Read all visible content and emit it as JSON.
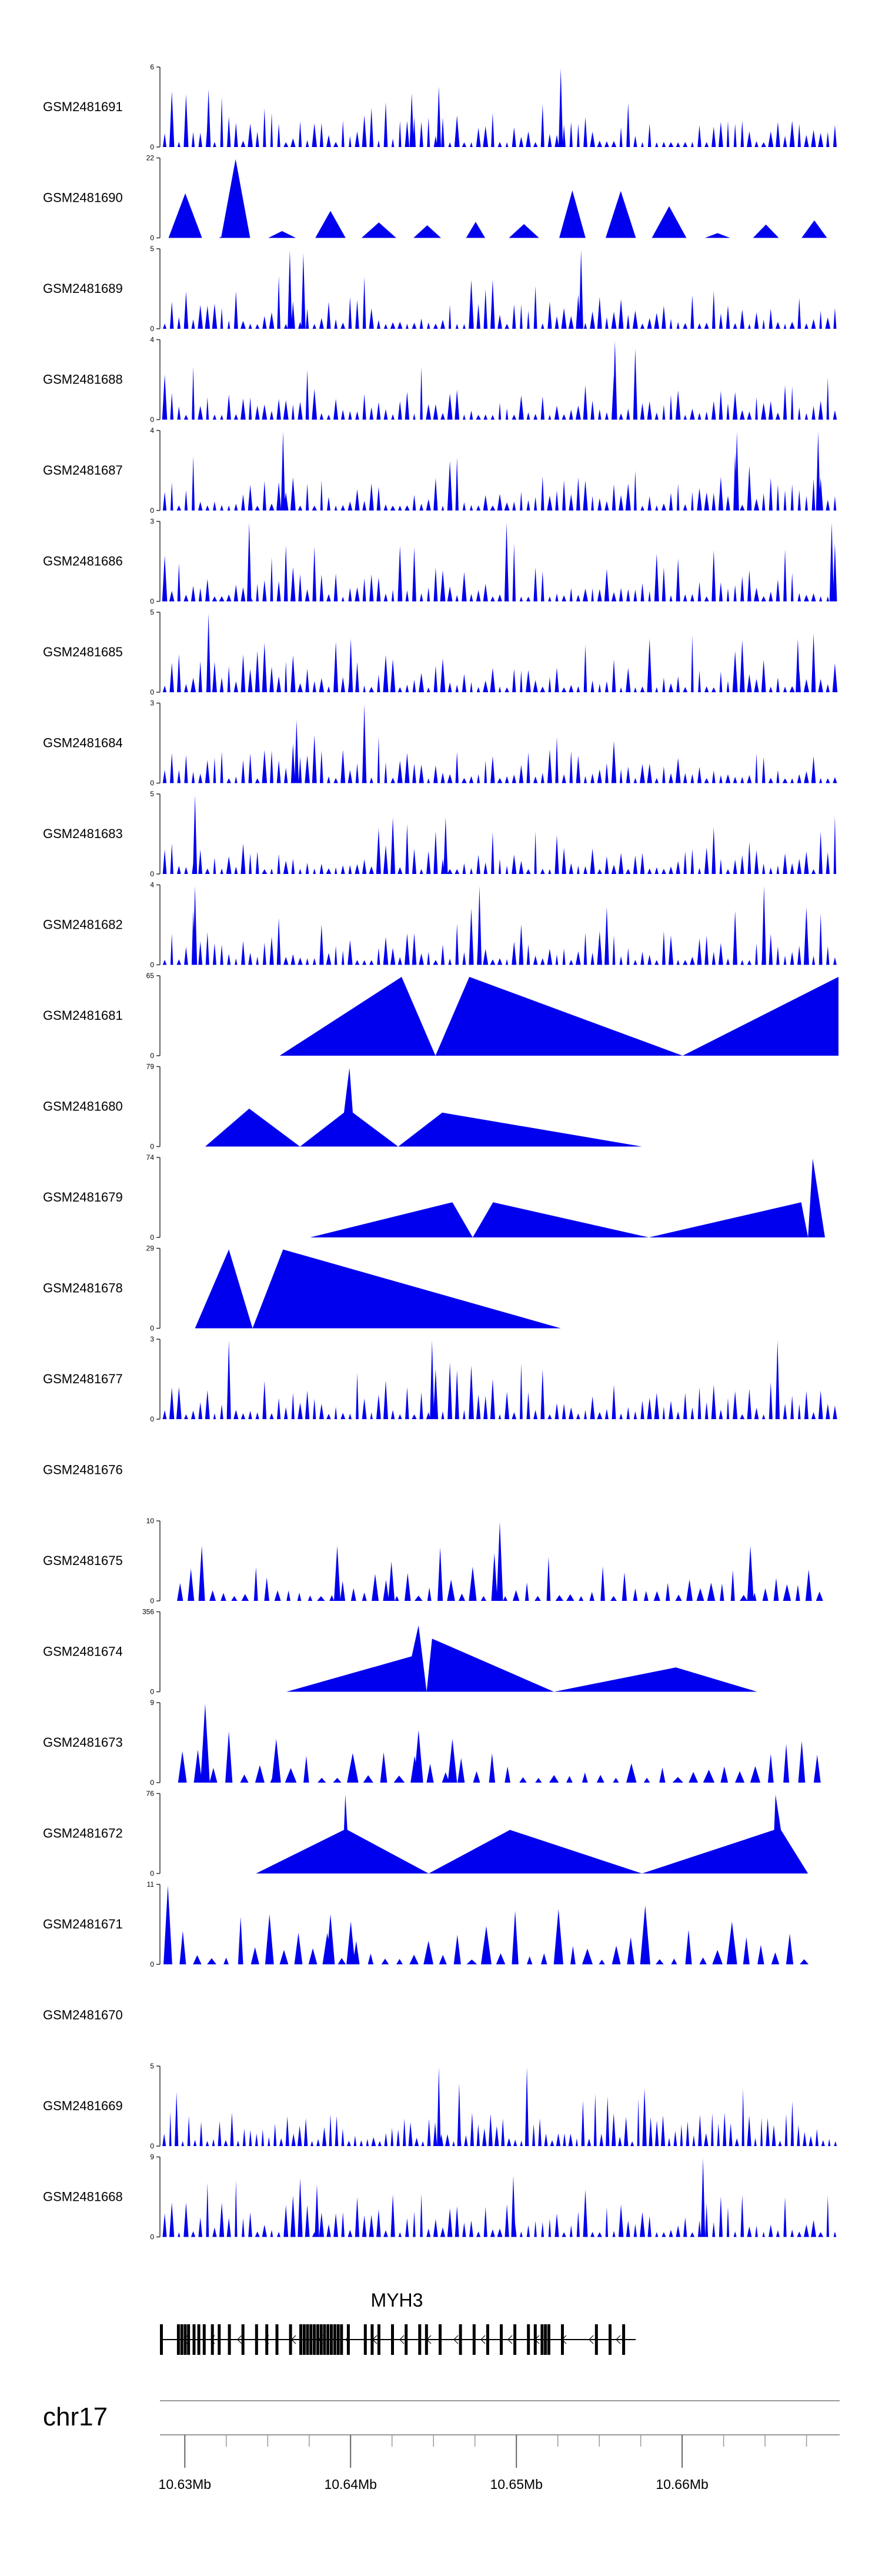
{
  "chart_data": {
    "type": "area",
    "title": "",
    "chromosome": "chr17",
    "gene": "MYH3",
    "x_range_mb": [
      10.6285,
      10.6695
    ],
    "tracks": [
      {
        "name": "GSM2481691",
        "ymax": 6,
        "density": 95,
        "span": [
          0.0,
          1.0
        ],
        "mode": "dense",
        "seed": 11,
        "spikes": [
          [
            0.59,
            6
          ],
          [
            0.41,
            4.6
          ],
          [
            0.07,
            4.4
          ],
          [
            0.37,
            4.1
          ]
        ]
      },
      {
        "name": "GSM2481690",
        "ymax": 22,
        "density": 14,
        "span": [
          0.0,
          1.0
        ],
        "mode": "peaks",
        "seed": 12,
        "spikes": [
          [
            0.11,
            22
          ]
        ]
      },
      {
        "name": "GSM2481689",
        "ymax": 5,
        "density": 95,
        "span": [
          0.0,
          1.0
        ],
        "mode": "dense",
        "seed": 13,
        "spikes": [
          [
            0.19,
            5
          ],
          [
            0.62,
            5
          ],
          [
            0.21,
            4.8
          ]
        ]
      },
      {
        "name": "GSM2481688",
        "ymax": 4,
        "density": 95,
        "span": [
          0.0,
          1.0
        ],
        "mode": "dense",
        "seed": 14,
        "spikes": [
          [
            0.67,
            4
          ],
          [
            0.7,
            3.6
          ]
        ]
      },
      {
        "name": "GSM2481687",
        "ymax": 4,
        "density": 95,
        "span": [
          0.0,
          1.0
        ],
        "mode": "dense",
        "seed": 15,
        "spikes": [
          [
            0.18,
            4
          ],
          [
            0.85,
            4
          ],
          [
            0.97,
            4
          ]
        ]
      },
      {
        "name": "GSM2481686",
        "ymax": 3,
        "density": 95,
        "span": [
          0.0,
          1.0
        ],
        "mode": "dense",
        "seed": 16,
        "spikes": [
          [
            0.13,
            3
          ],
          [
            0.51,
            3
          ],
          [
            0.99,
            3
          ]
        ]
      },
      {
        "name": "GSM2481685",
        "ymax": 5,
        "density": 95,
        "span": [
          0.0,
          1.0
        ],
        "mode": "dense",
        "seed": 17,
        "spikes": [
          [
            0.07,
            5
          ],
          [
            0.28,
            3.4
          ],
          [
            0.94,
            3.4
          ]
        ]
      },
      {
        "name": "GSM2481684",
        "ymax": 3,
        "density": 95,
        "span": [
          0.0,
          1.0
        ],
        "mode": "dense",
        "seed": 18,
        "spikes": [
          [
            0.3,
            3
          ],
          [
            0.2,
            2.4
          ]
        ]
      },
      {
        "name": "GSM2481683",
        "ymax": 5,
        "density": 95,
        "span": [
          0.0,
          1.0
        ],
        "mode": "dense",
        "seed": 19,
        "spikes": [
          [
            0.05,
            5
          ],
          [
            0.42,
            3.6
          ]
        ]
      },
      {
        "name": "GSM2481682",
        "ymax": 4,
        "density": 95,
        "span": [
          0.0,
          1.0
        ],
        "mode": "dense",
        "seed": 20,
        "spikes": [
          [
            0.05,
            4
          ],
          [
            0.47,
            4
          ],
          [
            0.89,
            4
          ]
        ]
      },
      {
        "name": "GSM2481681",
        "ymax": 65,
        "mode": "shapes",
        "points": [
          [
            0.175,
            0
          ],
          [
            0.355,
            65
          ],
          [
            0.405,
            0
          ],
          [
            0.455,
            65
          ],
          [
            0.77,
            0
          ],
          [
            1.0,
            65
          ],
          [
            1.0,
            0
          ]
        ]
      },
      {
        "name": "GSM2481680",
        "ymax": 79,
        "mode": "shapes",
        "points": [
          [
            0.065,
            0
          ],
          [
            0.13,
            38
          ],
          [
            0.205,
            0
          ],
          [
            0.27,
            34
          ],
          [
            0.278,
            79
          ],
          [
            0.283,
            34
          ],
          [
            0.35,
            0
          ],
          [
            0.415,
            34
          ],
          [
            0.71,
            0
          ]
        ]
      },
      {
        "name": "GSM2481679",
        "ymax": 74,
        "mode": "shapes",
        "points": [
          [
            0.22,
            0
          ],
          [
            0.43,
            33
          ],
          [
            0.46,
            0
          ],
          [
            0.49,
            33
          ],
          [
            0.72,
            0
          ],
          [
            0.945,
            33
          ],
          [
            0.955,
            0
          ],
          [
            0.962,
            74
          ],
          [
            0.98,
            0
          ]
        ]
      },
      {
        "name": "GSM2481678",
        "ymax": 29,
        "mode": "shapes",
        "points": [
          [
            0.05,
            0
          ],
          [
            0.1,
            29
          ],
          [
            0.135,
            0
          ],
          [
            0.18,
            29
          ],
          [
            0.59,
            0
          ]
        ]
      },
      {
        "name": "GSM2481677",
        "ymax": 3,
        "density": 95,
        "span": [
          0.0,
          1.0
        ],
        "mode": "dense",
        "seed": 21,
        "spikes": [
          [
            0.1,
            3
          ],
          [
            0.4,
            3
          ],
          [
            0.91,
            3
          ]
        ]
      },
      {
        "name": "GSM2481676",
        "ymax": null,
        "mode": "empty"
      },
      {
        "name": "GSM2481675",
        "ymax": 10,
        "density": 60,
        "span": [
          0.02,
          0.98
        ],
        "mode": "dense",
        "seed": 22,
        "spikes": [
          [
            0.5,
            10
          ],
          [
            0.87,
            7
          ],
          [
            0.26,
            7
          ],
          [
            0.06,
            7
          ],
          [
            0.34,
            5
          ]
        ]
      },
      {
        "name": "GSM2481674",
        "ymax": 356,
        "mode": "shapes",
        "points": [
          [
            0.185,
            0
          ],
          [
            0.37,
            160
          ],
          [
            0.38,
            300
          ],
          [
            0.392,
            0
          ],
          [
            0.4,
            240
          ],
          [
            0.58,
            0
          ],
          [
            0.76,
            110
          ],
          [
            0.88,
            0
          ]
        ]
      },
      {
        "name": "GSM2481673",
        "ymax": 9,
        "density": 42,
        "span": [
          0.02,
          0.98
        ],
        "mode": "dense",
        "seed": 23,
        "spikes": [
          [
            0.065,
            9
          ],
          [
            0.38,
            6
          ],
          [
            0.43,
            5
          ],
          [
            0.17,
            5
          ]
        ]
      },
      {
        "name": "GSM2481672",
        "ymax": 76,
        "mode": "shapes",
        "points": [
          [
            0.14,
            0
          ],
          [
            0.27,
            42
          ],
          [
            0.272,
            76
          ],
          [
            0.275,
            42
          ],
          [
            0.395,
            0
          ],
          [
            0.515,
            42
          ],
          [
            0.71,
            0
          ],
          [
            0.905,
            42
          ],
          [
            0.907,
            76
          ],
          [
            0.915,
            42
          ],
          [
            0.955,
            0
          ]
        ]
      },
      {
        "name": "GSM2481671",
        "ymax": 11,
        "density": 45,
        "span": [
          0.0,
          0.96
        ],
        "mode": "dense",
        "seed": 24,
        "spikes": [
          [
            0.01,
            11
          ],
          [
            0.16,
            7
          ],
          [
            0.25,
            7
          ],
          [
            0.28,
            6
          ]
        ]
      },
      {
        "name": "GSM2481670",
        "ymax": null,
        "mode": "empty"
      },
      {
        "name": "GSM2481669",
        "ymax": 5,
        "density": 110,
        "span": [
          0.0,
          1.0
        ],
        "mode": "dense",
        "seed": 25,
        "spikes": [
          [
            0.41,
            5
          ],
          [
            0.54,
            5
          ],
          [
            0.44,
            4
          ]
        ]
      },
      {
        "name": "GSM2481668",
        "ymax": 9,
        "density": 95,
        "span": [
          0.0,
          1.0
        ],
        "mode": "dense",
        "seed": 26,
        "spikes": [
          [
            0.8,
            9
          ],
          [
            0.52,
            7
          ],
          [
            0.23,
            6
          ]
        ]
      }
    ],
    "gene_track": {
      "label": "MYH3",
      "start_frac": 0.0,
      "end_frac": 0.7,
      "exons": [
        0.0,
        0.025,
        0.03,
        0.035,
        0.04,
        0.048,
        0.055,
        0.063,
        0.075,
        0.085,
        0.1,
        0.12,
        0.14,
        0.155,
        0.17,
        0.19,
        0.205,
        0.21,
        0.215,
        0.22,
        0.225,
        0.23,
        0.235,
        0.24,
        0.245,
        0.25,
        0.255,
        0.26,
        0.265,
        0.275,
        0.3,
        0.31,
        0.32,
        0.34,
        0.36,
        0.38,
        0.39,
        0.41,
        0.44,
        0.46,
        0.48,
        0.5,
        0.52,
        0.54,
        0.55,
        0.56,
        0.565,
        0.57,
        0.59,
        0.64,
        0.66,
        0.68
      ]
    },
    "axis": {
      "ticks_mb": [
        10.63,
        10.64,
        10.65,
        10.66
      ],
      "tick_labels": [
        "10.63Mb",
        "10.64Mb",
        "10.65Mb",
        "10.66Mb"
      ],
      "minor_step_mb": 0.0025
    },
    "colors": {
      "fill": "#0000ee",
      "axis": "#333333",
      "gene": "#000000",
      "chrom_line": "#999999"
    }
  }
}
